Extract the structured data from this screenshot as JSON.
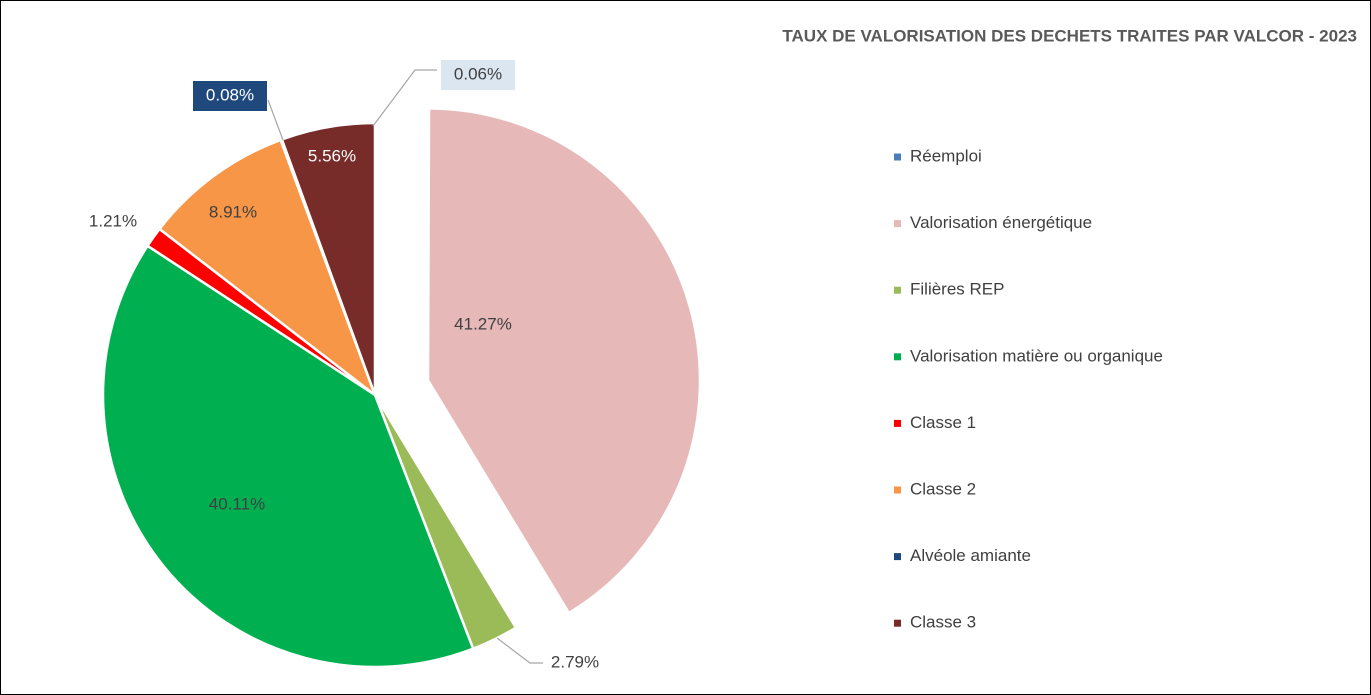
{
  "chart_data": {
    "type": "pie",
    "title": "TAUX DE VALORISATION DES DECHETS TRAITES PAR VALCOR - 2023",
    "categories": [
      "Réemploi",
      "Valorisation énergétique",
      "Filières REP",
      "Valorisation matière ou organique",
      "Classe 1",
      "Classe 2",
      "Alvéole amiante",
      "Classe 3"
    ],
    "values": [
      0.06,
      41.27,
      2.79,
      40.11,
      1.21,
      8.91,
      0.08,
      5.56
    ],
    "value_labels": [
      "0.06%",
      "41.27%",
      "2.79%",
      "40.11%",
      "1.21%",
      "8.91%",
      "0.08%",
      "5.56%"
    ],
    "colors": [
      "#4a7ebb",
      "#e6b8b7",
      "#9bbb59",
      "#00b050",
      "#ff0000",
      "#f79646",
      "#1f497d",
      "#772c2a"
    ],
    "exploded": [
      1
    ],
    "legend": "right"
  }
}
